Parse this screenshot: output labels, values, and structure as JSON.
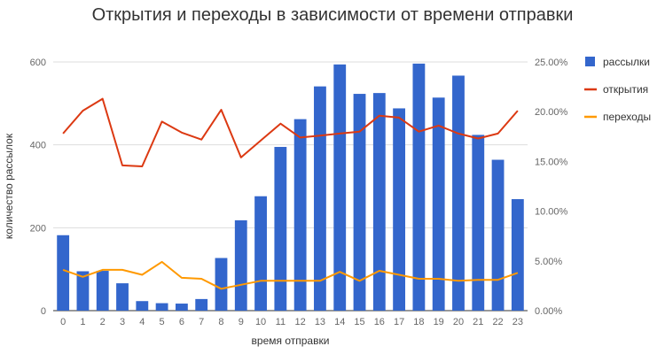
{
  "chart_data": {
    "type": "bar",
    "title": "Открытия и переходы в зависимости от времени отправки",
    "xlabel": "время отправки",
    "ylabel": "количество рассылок",
    "categories": [
      "0",
      "1",
      "2",
      "3",
      "4",
      "5",
      "6",
      "7",
      "8",
      "9",
      "10",
      "11",
      "12",
      "13",
      "14",
      "15",
      "16",
      "17",
      "18",
      "19",
      "20",
      "21",
      "22",
      "23"
    ],
    "ylim": [
      0,
      600
    ],
    "y_ticks": [
      "0",
      "200",
      "400",
      "600"
    ],
    "y2lim": [
      0,
      25
    ],
    "y2_ticks": [
      "0.00%",
      "5.00%",
      "10.00%",
      "15.00%",
      "20.00%",
      "25.00%"
    ],
    "grid": true,
    "legend_position": "right",
    "series": [
      {
        "name": "рассылки",
        "type": "bar",
        "axis": "left",
        "color": "#3366cc",
        "values": [
          182,
          95,
          96,
          66,
          23,
          18,
          17,
          28,
          127,
          218,
          276,
          395,
          462,
          541,
          594,
          523,
          525,
          488,
          596,
          514,
          567,
          424,
          364,
          269
        ]
      },
      {
        "name": "открытия",
        "type": "line",
        "axis": "right",
        "color": "#dc3912",
        "values": [
          17.8,
          20.1,
          21.3,
          14.6,
          14.5,
          19.0,
          17.9,
          17.2,
          20.2,
          15.4,
          17.1,
          18.8,
          17.4,
          17.6,
          17.8,
          18.0,
          19.6,
          19.4,
          18.0,
          18.6,
          17.8,
          17.3,
          17.8,
          20.1
        ]
      },
      {
        "name": "переходы",
        "type": "line",
        "axis": "right",
        "color": "#ff9900",
        "values": [
          4.1,
          3.4,
          4.1,
          4.1,
          3.6,
          4.9,
          3.3,
          3.2,
          2.2,
          2.6,
          3.0,
          3.0,
          3.0,
          3.0,
          3.9,
          3.0,
          4.0,
          3.6,
          3.2,
          3.2,
          3.0,
          3.1,
          3.1,
          3.8
        ]
      }
    ]
  }
}
